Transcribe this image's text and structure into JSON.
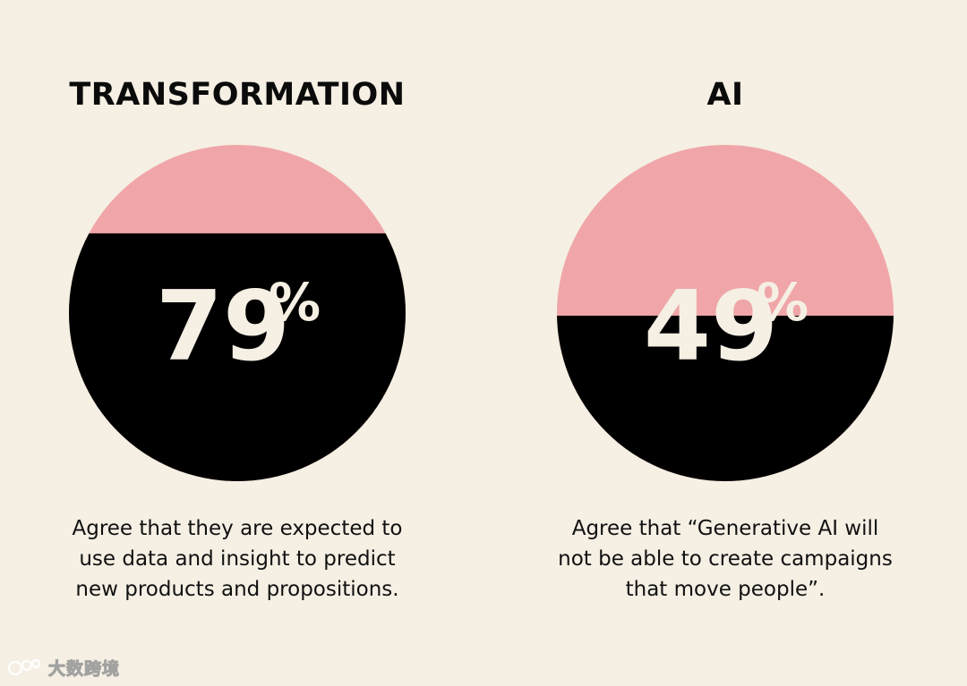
{
  "colors": {
    "background": "#f5efe4",
    "pink": "#f0a6a8",
    "black": "#000000",
    "number_text": "#f5efe4"
  },
  "chart_data": [
    {
      "type": "pie",
      "title": "TRANSFORMATION",
      "value_percent": 79,
      "label": "79",
      "percent_sign": "%",
      "caption": [
        "Agree that they are expected to",
        "use data and insight to predict",
        "new products and propositions."
      ],
      "segments": [
        {
          "color": "#000000",
          "value": 79
        },
        {
          "color": "#f0a6a8",
          "value": 21
        }
      ]
    },
    {
      "type": "pie",
      "title": "AI",
      "value_percent": 49,
      "label": "49",
      "percent_sign": "%",
      "caption": [
        "Agree that “Generative AI will",
        "not be able to create campaigns",
        "that move people”."
      ],
      "segments": [
        {
          "color": "#000000",
          "value": 49
        },
        {
          "color": "#f0a6a8",
          "value": 51
        }
      ]
    }
  ],
  "watermark": {
    "text": "大数跨境",
    "icon": "logo-mark-icon"
  }
}
